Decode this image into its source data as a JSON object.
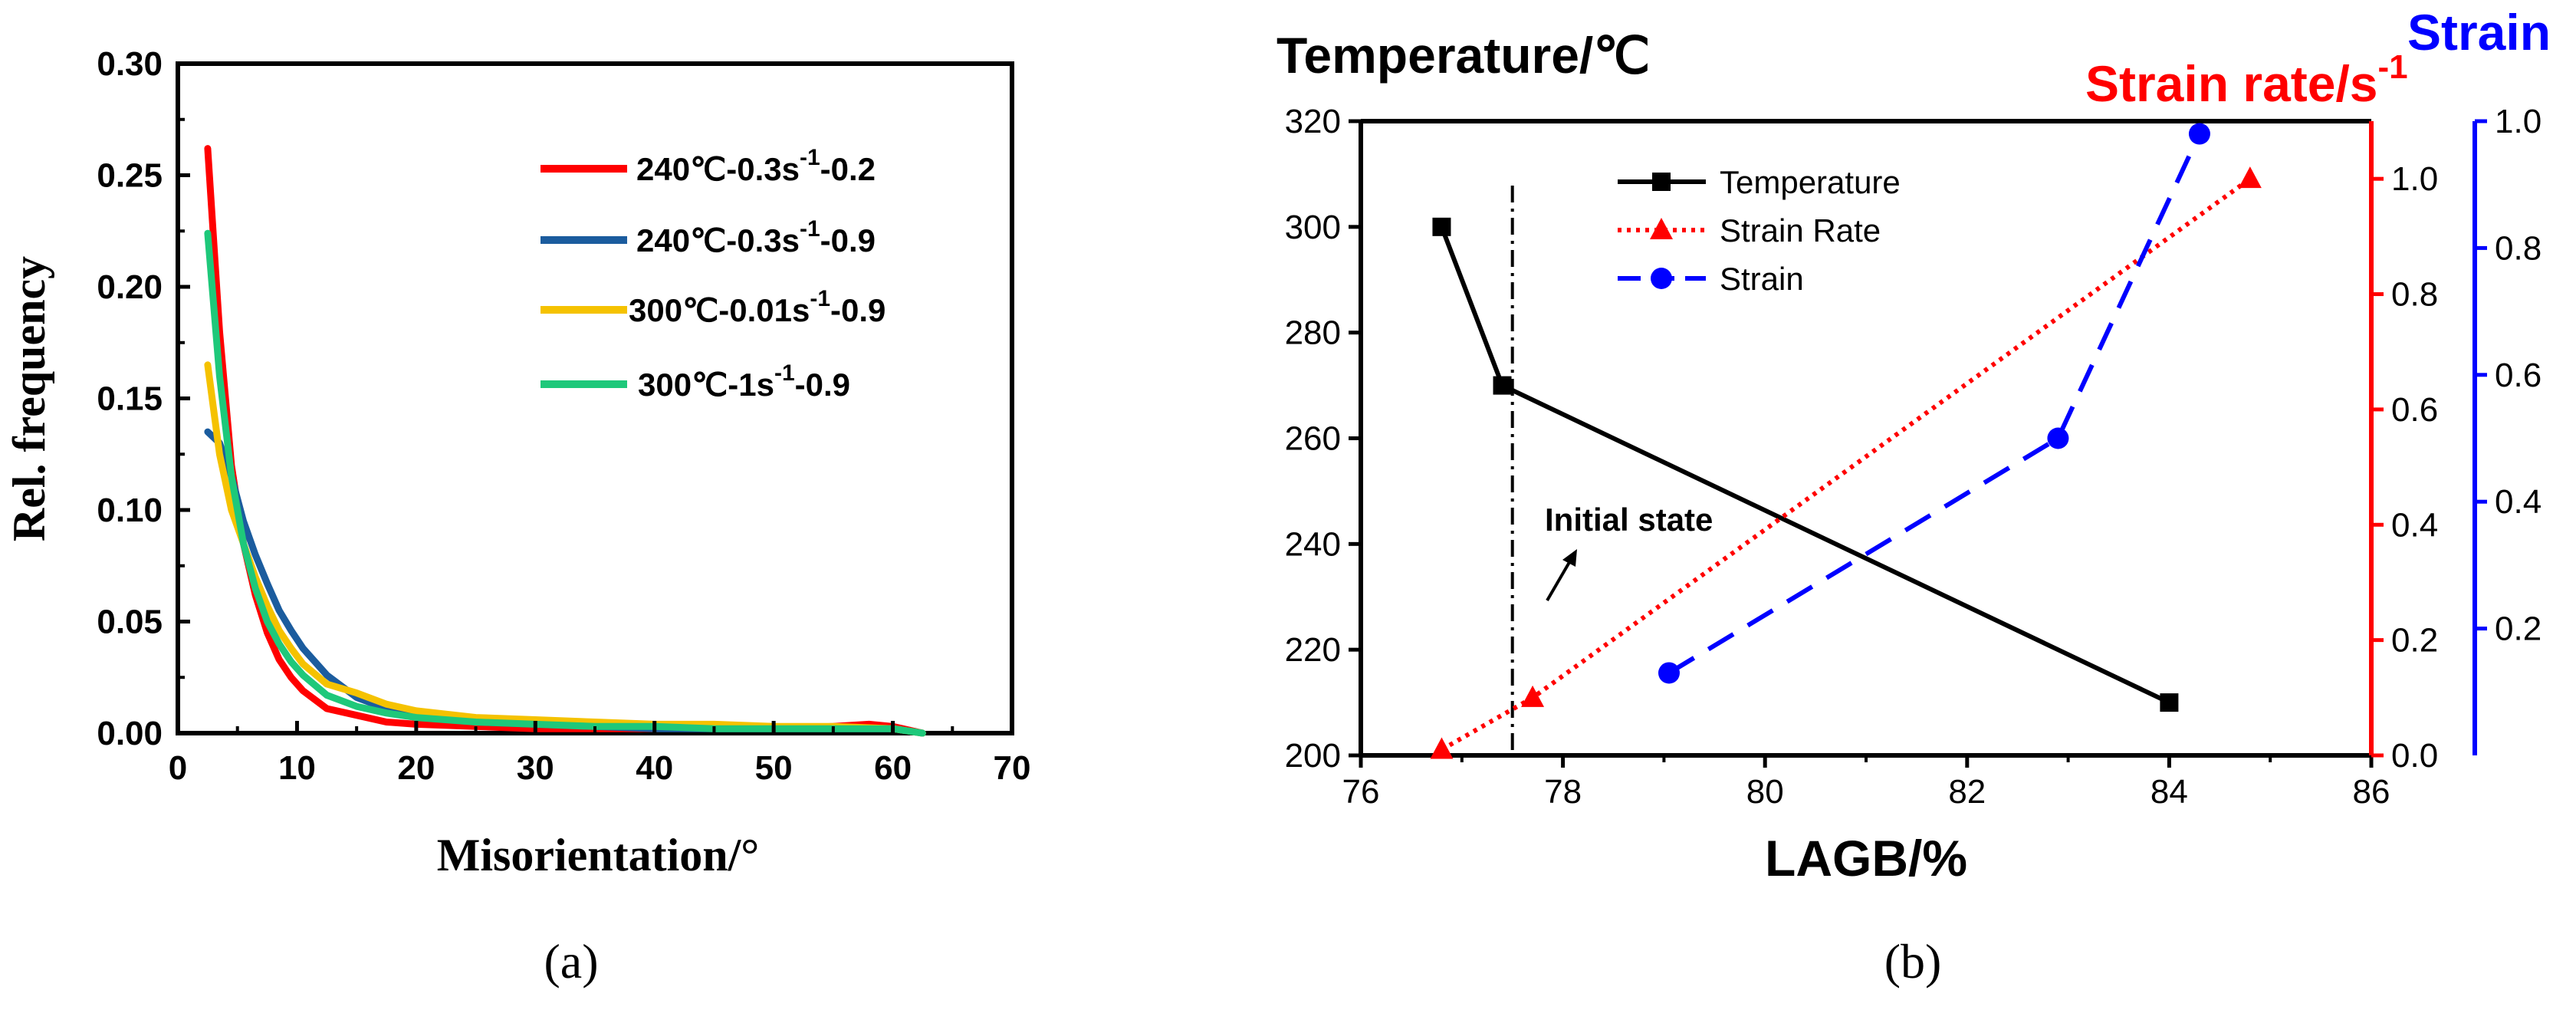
{
  "chart_data": [
    {
      "id": "a",
      "type": "line",
      "panel_label": "(a)",
      "xlabel": "Misorientation/°",
      "ylabel": "Rel. frequency",
      "xlim": [
        0,
        70
      ],
      "ylim": [
        0,
        0.3
      ],
      "xticks": [
        "0",
        "10",
        "20",
        "30",
        "40",
        "50",
        "60",
        "70"
      ],
      "yticks": [
        "0.00",
        "0.05",
        "0.10",
        "0.15",
        "0.20",
        "0.25",
        "0.30"
      ],
      "legend_position": "top-right",
      "series": [
        {
          "name": "240℃-0.3s⁻¹-0.2",
          "legend": {
            "pre": "240℃-0.3s",
            "sup": "-1",
            "post": "-0.2"
          },
          "color": "#ff0000",
          "x": [
            2.5,
            3.5,
            4.5,
            5.5,
            6.5,
            7.5,
            8.5,
            9.5,
            10.5,
            12.5,
            15,
            17.5,
            20,
            25,
            30,
            35,
            40,
            45,
            50,
            55,
            58,
            60,
            62.5
          ],
          "y": [
            0.262,
            0.18,
            0.12,
            0.085,
            0.062,
            0.045,
            0.033,
            0.025,
            0.019,
            0.011,
            0.008,
            0.005,
            0.004,
            0.003,
            0.002,
            0.002,
            0.002,
            0.003,
            0.002,
            0.003,
            0.004,
            0.003,
            0.0
          ]
        },
        {
          "name": "240℃-0.3s⁻¹-0.9",
          "legend": {
            "pre": "240℃-0.3s",
            "sup": "-1",
            "post": "-0.9"
          },
          "color": "#1b5c9e",
          "x": [
            2.5,
            3.5,
            4.5,
            5.5,
            6.5,
            7.5,
            8.5,
            9.5,
            10.5,
            12.5,
            15,
            17.5,
            20,
            25,
            30,
            35,
            40,
            45,
            50,
            55,
            60,
            62.5
          ],
          "y": [
            0.135,
            0.13,
            0.115,
            0.095,
            0.08,
            0.067,
            0.055,
            0.046,
            0.038,
            0.026,
            0.016,
            0.011,
            0.008,
            0.005,
            0.004,
            0.003,
            0.002,
            0.002,
            0.002,
            0.002,
            0.002,
            0.0
          ]
        },
        {
          "name": "300℃-0.01s⁻¹-0.9",
          "legend": {
            "pre": "300℃-0.01s",
            "sup": "-1",
            "post": "-0.9"
          },
          "color": "#f5c200",
          "x": [
            2.5,
            3.5,
            4.5,
            5.5,
            6.5,
            7.5,
            8.5,
            9.5,
            10.5,
            12.5,
            15,
            17.5,
            20,
            25,
            30,
            35,
            40,
            45,
            50,
            55,
            60,
            62.5
          ],
          "y": [
            0.165,
            0.125,
            0.1,
            0.085,
            0.07,
            0.057,
            0.046,
            0.038,
            0.031,
            0.022,
            0.018,
            0.013,
            0.01,
            0.007,
            0.006,
            0.005,
            0.004,
            0.004,
            0.003,
            0.003,
            0.002,
            0.0
          ]
        },
        {
          "name": "300℃-1s⁻¹-0.9",
          "legend": {
            "pre": "300℃-1s",
            "sup": "-1",
            "post": "-0.9"
          },
          "color": "#1ec87a",
          "x": [
            2.5,
            3.5,
            4.5,
            5.5,
            6.5,
            7.5,
            8.5,
            9.5,
            10.5,
            12.5,
            15,
            17.5,
            20,
            25,
            30,
            35,
            40,
            45,
            50,
            55,
            60,
            62.5
          ],
          "y": [
            0.224,
            0.16,
            0.115,
            0.085,
            0.065,
            0.05,
            0.04,
            0.032,
            0.026,
            0.017,
            0.012,
            0.009,
            0.007,
            0.005,
            0.004,
            0.003,
            0.003,
            0.002,
            0.002,
            0.002,
            0.002,
            0.0
          ]
        }
      ]
    },
    {
      "id": "b",
      "type": "line",
      "panel_label": "(b)",
      "xlabel": "LAGB/%",
      "xlim": [
        76,
        86
      ],
      "xticks": [
        "76",
        "78",
        "80",
        "82",
        "84",
        "86"
      ],
      "legend_position": "top-left",
      "y_axes": [
        {
          "label": "Temperature/℃",
          "side": "left",
          "color": "#000000",
          "range": [
            200,
            320
          ],
          "ticks": [
            "200",
            "220",
            "240",
            "260",
            "280",
            "300",
            "320"
          ]
        },
        {
          "label_pre": "Strain rate/s",
          "label_sup": "-1",
          "side": "right-inner",
          "color": "#ff0000",
          "range": [
            0.0,
            1.1
          ],
          "ticks": [
            "0.0",
            "0.2",
            "0.4",
            "0.6",
            "0.8",
            "1.0"
          ]
        },
        {
          "label": "Strain",
          "side": "right-outer",
          "color": "#0000ff",
          "range": [
            0.0,
            1.0
          ],
          "ticks": [
            "0.2",
            "0.4",
            "0.6",
            "0.8",
            "1.0"
          ]
        }
      ],
      "series": [
        {
          "name": "Temperature",
          "axis": 0,
          "color": "#000000",
          "marker": "square",
          "dash": "solid",
          "x": [
            76.8,
            77.4,
            84.0
          ],
          "y": [
            300,
            270,
            210
          ]
        },
        {
          "name": "Strain Rate",
          "axis": 1,
          "color": "#ff0000",
          "marker": "triangle",
          "dash": "dotted",
          "x": [
            76.8,
            77.7,
            84.8
          ],
          "y": [
            0.01,
            0.1,
            1.0
          ]
        },
        {
          "name": "Strain",
          "axis": 2,
          "color": "#0000ff",
          "marker": "circle",
          "dash": "dashed",
          "x": [
            79.05,
            82.9,
            84.3
          ],
          "y": [
            0.13,
            0.5,
            0.98
          ]
        }
      ],
      "vline_x": 77.5,
      "annotation": "Initial state"
    }
  ]
}
